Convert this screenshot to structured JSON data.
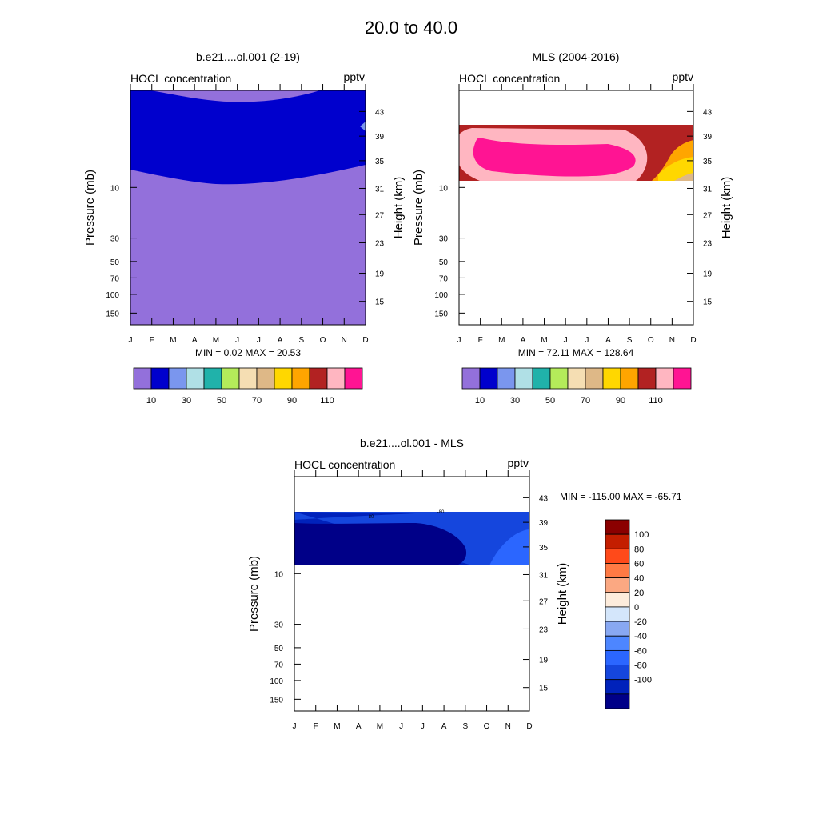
{
  "title": "20.0 to  40.0",
  "month_labels": [
    "J",
    "F",
    "M",
    "A",
    "M",
    "J",
    "J",
    "A",
    "S",
    "O",
    "N",
    "D"
  ],
  "pressure_axis": {
    "label": "Pressure (mb)",
    "ticks": [
      "10",
      "30",
      "50",
      "70",
      "100",
      "150"
    ]
  },
  "height_axis": {
    "label": "Height (km)",
    "ticks": [
      "43",
      "39",
      "35",
      "31",
      "27",
      "23",
      "19",
      "15"
    ]
  },
  "colors": {
    "hocl_levels": [
      "#9370db",
      "#0000cd",
      "#7a96ee",
      "#b0e0e6",
      "#20b2aa",
      "#b4eb5a",
      "#f5deb3",
      "#deb887",
      "#ffd700",
      "#ffa500",
      "#b22222",
      "#ffb6c1",
      "#ff1493"
    ],
    "diff_levels": [
      "#000088",
      "#0022bb",
      "#1546dd",
      "#2b66ff",
      "#4d86ff",
      "#88a8f2",
      "#d4e6fb",
      "#fdecdc",
      "#fba882",
      "#ff7a44",
      "#ff4a1a",
      "#c41e00",
      "#8b0000"
    ]
  },
  "panels": {
    "model": {
      "title": "b.e21....ol.001 (2-19)",
      "left_label": "HOCL concentration",
      "right_label": "pptv",
      "stats": "MIN =   0.02  MAX =  20.53"
    },
    "mls": {
      "title": "MLS (2004-2016)",
      "left_label": "HOCL concentration",
      "right_label": "pptv",
      "stats": "MIN =  72.11  MAX = 128.64"
    },
    "diff": {
      "title": "b.e21....ol.001 - MLS",
      "left_label": "HOCL concentration",
      "right_label": "pptv",
      "stats": "MIN = -115.00  MAX = -65.71",
      "contour_labels": [
        "-80",
        "-80"
      ]
    }
  },
  "colorbar_hocl": {
    "labels": [
      "10",
      "30",
      "50",
      "70",
      "90",
      "110"
    ]
  },
  "colorbar_diff": {
    "labels": [
      "100",
      "80",
      "60",
      "40",
      "20",
      "0",
      "-20",
      "-40",
      "-60",
      "-80",
      "-100"
    ]
  },
  "chart_data": [
    {
      "type": "heatmap",
      "title": "b.e21....ol.001 (2-19)",
      "subtitle": "HOCL concentration",
      "units": "pptv",
      "x": [
        "J",
        "F",
        "M",
        "A",
        "M",
        "J",
        "J",
        "A",
        "S",
        "O",
        "N",
        "D"
      ],
      "ylabel": "Pressure (mb)",
      "y2label": "Height (km)",
      "stats": {
        "min": 0.02,
        "max": 20.53
      },
      "levels": [
        10,
        20,
        30,
        40,
        50,
        60,
        70,
        80,
        90,
        100,
        110,
        120
      ]
    },
    {
      "type": "heatmap",
      "title": "MLS (2004-2016)",
      "subtitle": "HOCL concentration",
      "units": "pptv",
      "x": [
        "J",
        "F",
        "M",
        "A",
        "M",
        "J",
        "J",
        "A",
        "S",
        "O",
        "N",
        "D"
      ],
      "ylabel": "Pressure (mb)",
      "y2label": "Height (km)",
      "stats": {
        "min": 72.11,
        "max": 128.64
      },
      "levels": [
        10,
        20,
        30,
        40,
        50,
        60,
        70,
        80,
        90,
        100,
        110,
        120
      ]
    },
    {
      "type": "heatmap",
      "title": "b.e21....ol.001 - MLS",
      "subtitle": "HOCL concentration",
      "units": "pptv",
      "x": [
        "J",
        "F",
        "M",
        "A",
        "M",
        "J",
        "J",
        "A",
        "S",
        "O",
        "N",
        "D"
      ],
      "ylabel": "Pressure (mb)",
      "y2label": "Height (km)",
      "stats": {
        "min": -115.0,
        "max": -65.71
      },
      "levels": [
        -100,
        -80,
        -60,
        -40,
        -20,
        0,
        20,
        40,
        60,
        80,
        100
      ]
    }
  ]
}
